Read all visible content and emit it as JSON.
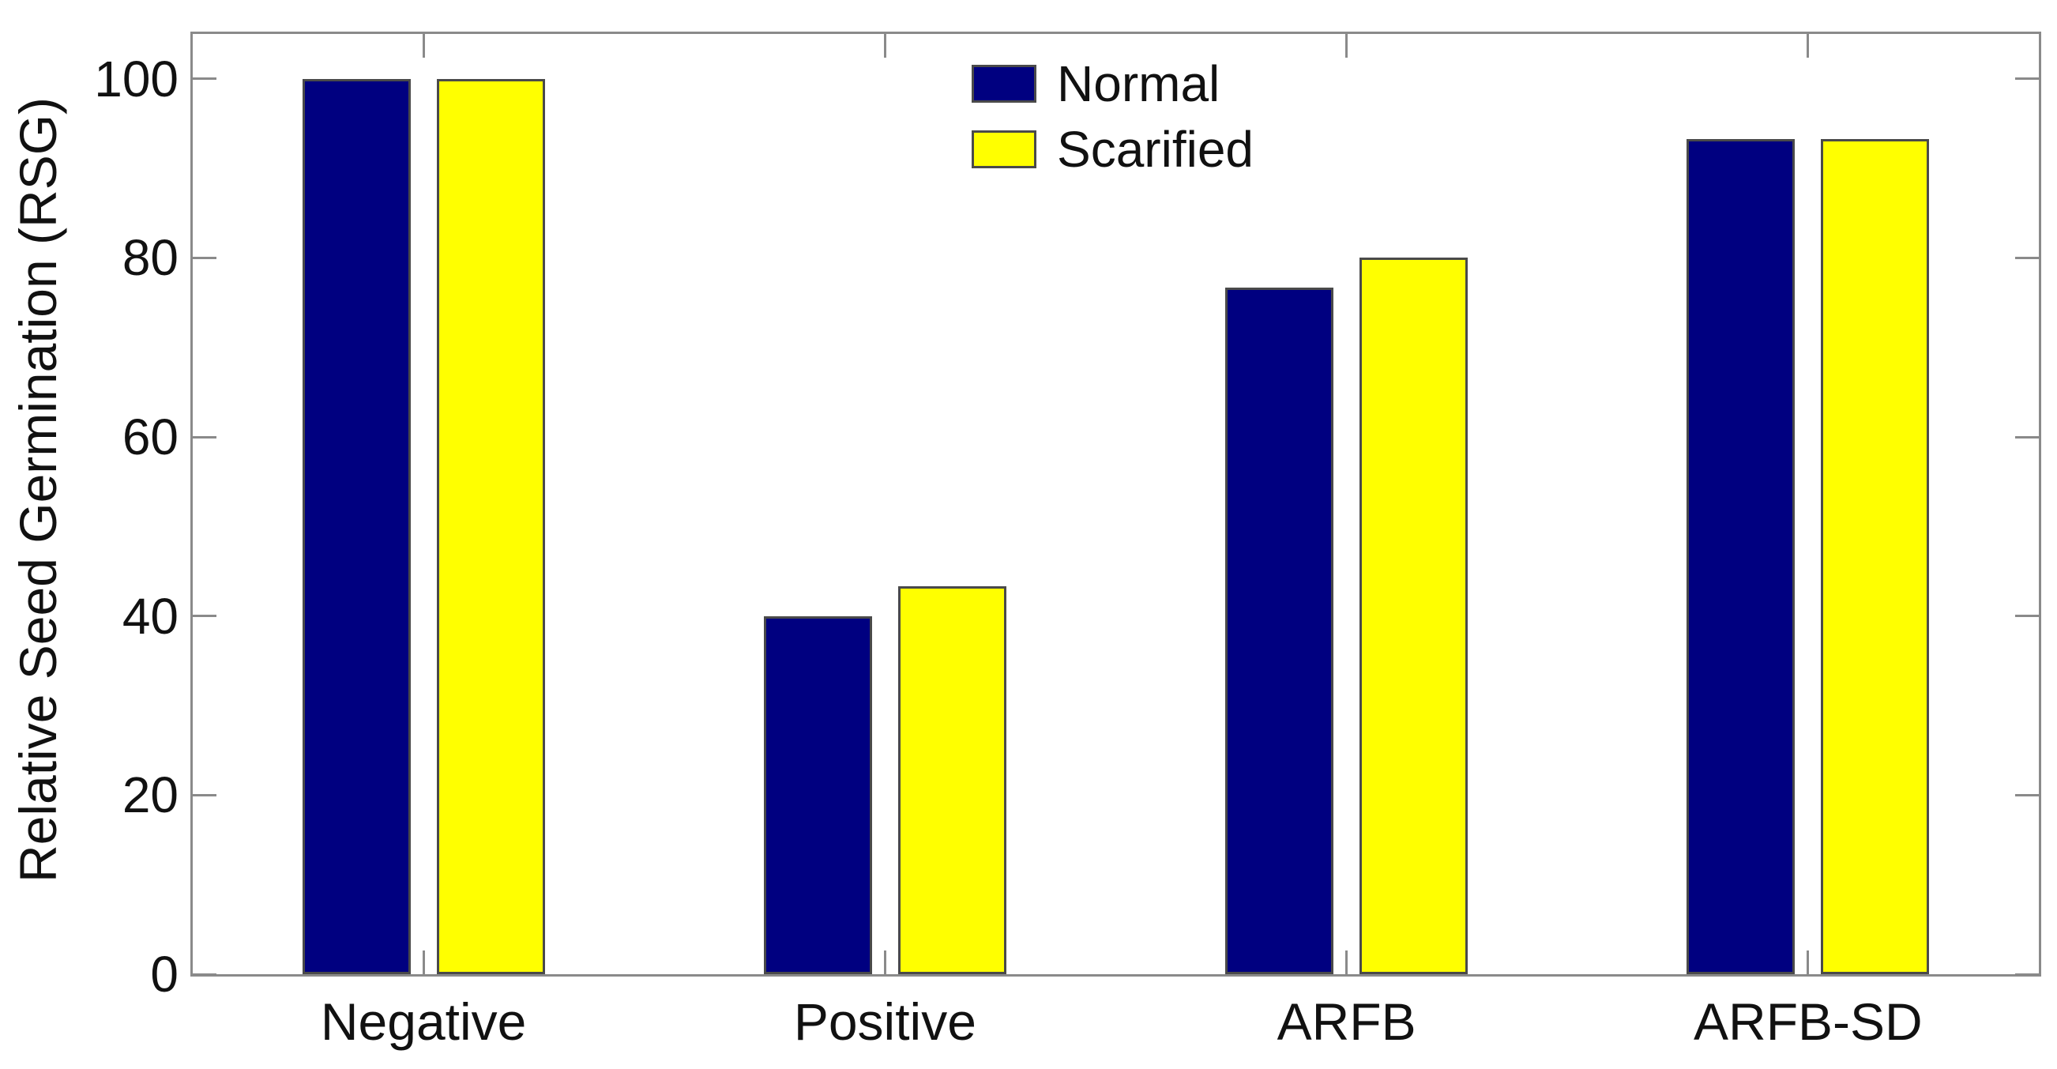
{
  "chart_data": {
    "type": "bar",
    "title": "",
    "xlabel": "",
    "ylabel": "Relative Seed Germination (RSG)",
    "categories": [
      "Negative",
      "Positive",
      "ARFB",
      "ARFB-SD"
    ],
    "series": [
      {
        "name": "Normal",
        "color": "#000080",
        "values": [
          100,
          40,
          76.7,
          93.3
        ]
      },
      {
        "name": "Scarified",
        "color": "#ffff00",
        "values": [
          100,
          43.3,
          80,
          93.3
        ]
      }
    ],
    "ylim": [
      0,
      105
    ],
    "yticks": [
      0,
      20,
      40,
      60,
      80,
      100
    ],
    "grid": false,
    "legend_position": "top-center-inside",
    "bar_edge_color": "#4a4a4a",
    "axis_color": "#8a8a8a",
    "text_color": "#111111"
  }
}
